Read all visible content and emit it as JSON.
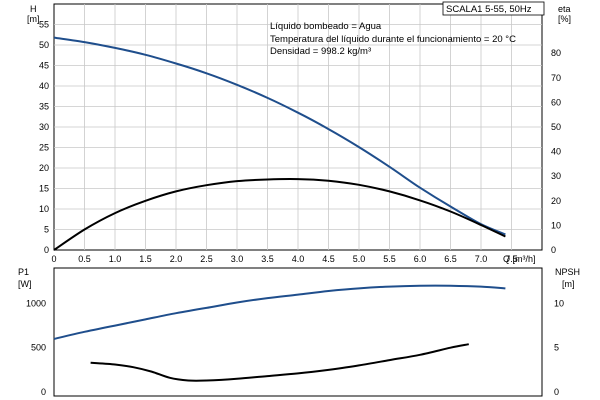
{
  "chart_data": [
    {
      "type": "line",
      "title_box": "SCALA1 5-55, 50Hz",
      "annotations": [
        "Líquido bombeado = Agua",
        "Temperatura del líquido durante el funcionamiento = 20 °C",
        "Densidad = 998.2 kg/m³"
      ],
      "left_axis": {
        "label": "H",
        "unit": "[m]",
        "ylim": [
          0,
          60
        ],
        "ticks": [
          0,
          5,
          10,
          15,
          20,
          25,
          30,
          35,
          40,
          45,
          50,
          55
        ]
      },
      "right_axis": {
        "label": "eta",
        "unit": "[%]",
        "ylim": [
          0,
          100
        ],
        "ticks": [
          0,
          10,
          20,
          30,
          40,
          50,
          60,
          70,
          80
        ]
      },
      "x_axis": {
        "label": "Q [m³/h]",
        "xlim": [
          0,
          8
        ],
        "ticks": [
          "0",
          "0.5",
          "1.0",
          "1.5",
          "2.0",
          "2.5",
          "3.0",
          "3.5",
          "4.0",
          "4.5",
          "5.0",
          "5.5",
          "6.0",
          "6.5",
          "7.0",
          "7.5"
        ]
      },
      "grid": true,
      "series": [
        {
          "color": "#1f4e8c",
          "axis": "left",
          "x": [
            0,
            0.5,
            1.0,
            1.5,
            2.0,
            2.5,
            3.0,
            3.5,
            4.0,
            4.5,
            5.0,
            5.5,
            6.0,
            6.5,
            7.0,
            7.4
          ],
          "values": [
            51.8,
            50.7,
            49.3,
            47.6,
            45.5,
            43.1,
            40.3,
            37.1,
            33.5,
            29.5,
            25.1,
            20.3,
            15.2,
            10.6,
            6.3,
            3.8
          ]
        },
        {
          "color": "#000000",
          "axis": "left",
          "x": [
            0,
            0.5,
            1.0,
            1.5,
            2.0,
            2.5,
            3.0,
            3.5,
            4.0,
            4.5,
            5.0,
            5.5,
            6.0,
            6.5,
            7.0,
            7.4
          ],
          "values": [
            0,
            5.0,
            9.0,
            12.0,
            14.3,
            15.8,
            16.8,
            17.2,
            17.3,
            16.9,
            15.9,
            14.3,
            12.1,
            9.4,
            6.1,
            3.3
          ]
        }
      ]
    },
    {
      "type": "line",
      "left_axis": {
        "label": "P1",
        "unit": "[W]",
        "ylim": [
          0,
          1400
        ],
        "ticks": [
          0,
          500,
          1000
        ]
      },
      "right_axis": {
        "label": "NPSH",
        "unit": "[m]",
        "ylim": [
          0,
          14
        ],
        "ticks": [
          0,
          5,
          10
        ]
      },
      "xlim": [
        0,
        8
      ],
      "grid": false,
      "series": [
        {
          "color": "#1f4e8c",
          "axis": "left",
          "x": [
            0,
            0.5,
            1.0,
            1.5,
            2.0,
            2.5,
            3.0,
            3.5,
            4.0,
            4.5,
            5.0,
            5.5,
            6.0,
            6.5,
            7.0,
            7.4
          ],
          "values": [
            600,
            680,
            750,
            820,
            890,
            950,
            1010,
            1060,
            1100,
            1140,
            1170,
            1190,
            1200,
            1200,
            1190,
            1170
          ]
        },
        {
          "color": "#000000",
          "axis": "right",
          "x": [
            0.6,
            1.0,
            1.3,
            1.6,
            1.9,
            2.2,
            2.5,
            3.0,
            3.5,
            4.0,
            4.5,
            5.0,
            5.5,
            6.0,
            6.5,
            6.8
          ],
          "values": [
            3.3,
            3.1,
            2.8,
            2.3,
            1.6,
            1.3,
            1.3,
            1.5,
            1.8,
            2.1,
            2.5,
            3.0,
            3.6,
            4.2,
            5.0,
            5.4
          ]
        }
      ]
    }
  ]
}
